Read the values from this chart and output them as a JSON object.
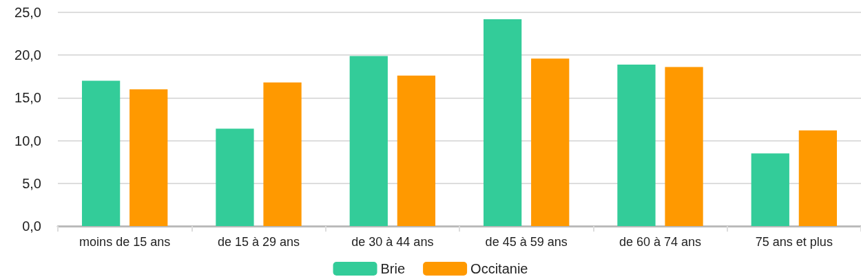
{
  "chart_data": {
    "type": "bar",
    "categories": [
      "moins de 15 ans",
      "de 15 à 29 ans",
      "de 30 à 44 ans",
      "de 45 à 59 ans",
      "de 60 à 74 ans",
      "75 ans et plus"
    ],
    "series": [
      {
        "name": "Brie",
        "color": "#33cc99",
        "values": [
          17.0,
          11.4,
          19.9,
          24.2,
          18.9,
          8.5
        ]
      },
      {
        "name": "Occitanie",
        "color": "#ff9900",
        "values": [
          16.0,
          16.8,
          17.6,
          19.6,
          18.6,
          11.2
        ]
      }
    ],
    "ylim": [
      0,
      25
    ],
    "yticks": [
      {
        "value": 0,
        "label": "0,0"
      },
      {
        "value": 5,
        "label": "5,0"
      },
      {
        "value": 10,
        "label": "10,0"
      },
      {
        "value": 15,
        "label": "15,0"
      },
      {
        "value": 20,
        "label": "20,0"
      },
      {
        "value": 25,
        "label": "25,0"
      }
    ],
    "grid": "y",
    "legend": "bottom"
  }
}
